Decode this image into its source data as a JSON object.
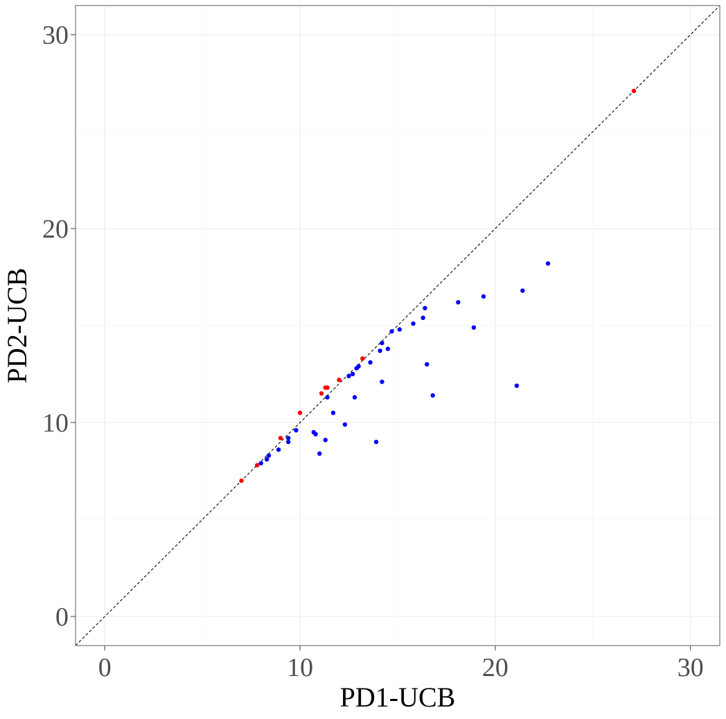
{
  "chart_data": {
    "type": "scatter",
    "xlabel": "PD1-UCB",
    "ylabel": "PD2-UCB",
    "xlim": [
      -1.5,
      31.5
    ],
    "ylim": [
      -1.5,
      31.5
    ],
    "x_ticks": [
      0,
      10,
      20,
      30
    ],
    "y_ticks": [
      0,
      10,
      20,
      30
    ],
    "x_tick_labels": [
      "0",
      "10",
      "20",
      "30"
    ],
    "y_tick_labels": [
      "0",
      "10",
      "20",
      "30"
    ],
    "grid": true,
    "reference_line": "y = x (dashed)",
    "series": [
      {
        "color": "#0000ff",
        "points": [
          [
            8.0,
            7.9
          ],
          [
            8.3,
            8.1
          ],
          [
            8.4,
            8.3
          ],
          [
            8.9,
            8.6
          ],
          [
            9.4,
            9.0
          ],
          [
            9.4,
            9.2
          ],
          [
            9.8,
            9.6
          ],
          [
            10.7,
            9.5
          ],
          [
            10.8,
            9.4
          ],
          [
            11.0,
            8.4
          ],
          [
            11.3,
            9.1
          ],
          [
            11.4,
            11.3
          ],
          [
            11.7,
            10.5
          ],
          [
            12.3,
            9.9
          ],
          [
            12.5,
            12.4
          ],
          [
            12.7,
            12.5
          ],
          [
            12.8,
            11.3
          ],
          [
            12.9,
            12.8
          ],
          [
            13.0,
            12.9
          ],
          [
            13.6,
            13.1
          ],
          [
            13.9,
            9.0
          ],
          [
            14.1,
            13.7
          ],
          [
            14.2,
            14.1
          ],
          [
            14.2,
            12.1
          ],
          [
            14.5,
            13.8
          ],
          [
            14.7,
            14.7
          ],
          [
            15.1,
            14.8
          ],
          [
            15.8,
            15.1
          ],
          [
            16.3,
            15.4
          ],
          [
            16.4,
            15.9
          ],
          [
            16.5,
            13.0
          ],
          [
            16.8,
            11.4
          ],
          [
            18.1,
            16.2
          ],
          [
            18.9,
            14.9
          ],
          [
            19.4,
            16.5
          ],
          [
            21.1,
            11.9
          ],
          [
            21.4,
            16.8
          ],
          [
            22.7,
            18.2
          ]
        ]
      },
      {
        "color": "#ff0000",
        "points": [
          [
            7.0,
            7.0
          ],
          [
            7.8,
            7.8
          ],
          [
            9.0,
            9.2
          ],
          [
            10.0,
            10.5
          ],
          [
            11.1,
            11.5
          ],
          [
            11.3,
            11.8
          ],
          [
            11.4,
            11.8
          ],
          [
            12.0,
            12.2
          ],
          [
            13.2,
            13.3
          ],
          [
            27.1,
            27.1
          ]
        ]
      }
    ]
  }
}
